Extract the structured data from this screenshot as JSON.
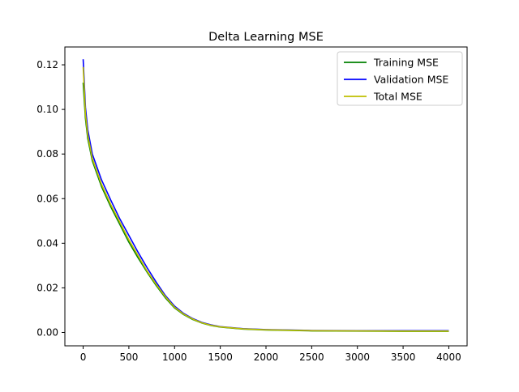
{
  "chart_data": {
    "type": "line",
    "title": "Delta Learning MSE",
    "xlabel": "",
    "ylabel": "",
    "xlim": [
      -200,
      4200
    ],
    "ylim": [
      -0.006,
      0.128
    ],
    "xticks": [
      0,
      500,
      1000,
      1500,
      2000,
      2500,
      3000,
      3500,
      4000
    ],
    "xtick_labels": [
      "0",
      "500",
      "1000",
      "1500",
      "2000",
      "2500",
      "3000",
      "3500",
      "4000"
    ],
    "yticks": [
      0.0,
      0.02,
      0.04,
      0.06,
      0.08,
      0.1,
      0.12
    ],
    "ytick_labels": [
      "0.00",
      "0.02",
      "0.04",
      "0.06",
      "0.08",
      "0.10",
      "0.12"
    ],
    "grid": false,
    "legend_position": "top-right",
    "x": [
      0,
      25,
      50,
      100,
      200,
      300,
      400,
      500,
      600,
      700,
      800,
      900,
      1000,
      1100,
      1200,
      1300,
      1400,
      1500,
      1750,
      2000,
      2250,
      2500,
      3000,
      3500,
      4000
    ],
    "series": [
      {
        "name": "Training MSE",
        "color": "#008000",
        "values": [
          0.112,
          0.096,
          0.087,
          0.077,
          0.0655,
          0.0565,
          0.0485,
          0.0405,
          0.0335,
          0.027,
          0.021,
          0.0155,
          0.011,
          0.008,
          0.0058,
          0.0042,
          0.0031,
          0.0024,
          0.0015,
          0.0011,
          0.0009,
          0.0007,
          0.0006,
          0.0005,
          0.0005
        ]
      },
      {
        "name": "Validation MSE",
        "color": "#0000ff",
        "values": [
          0.1225,
          0.101,
          0.091,
          0.08,
          0.0685,
          0.0595,
          0.051,
          0.0435,
          0.036,
          0.029,
          0.0225,
          0.0165,
          0.0118,
          0.0085,
          0.0062,
          0.0045,
          0.0034,
          0.0026,
          0.0017,
          0.0013,
          0.0011,
          0.0009,
          0.0008,
          0.0008,
          0.0008
        ]
      },
      {
        "name": "Total MSE",
        "color": "#bfbf00",
        "values": [
          0.119,
          0.098,
          0.0885,
          0.078,
          0.0665,
          0.0575,
          0.0495,
          0.0415,
          0.0345,
          0.0275,
          0.0215,
          0.016,
          0.0113,
          0.0082,
          0.006,
          0.0043,
          0.0032,
          0.0025,
          0.0016,
          0.0012,
          0.001,
          0.0008,
          0.0007,
          0.0006,
          0.0006
        ]
      }
    ]
  }
}
